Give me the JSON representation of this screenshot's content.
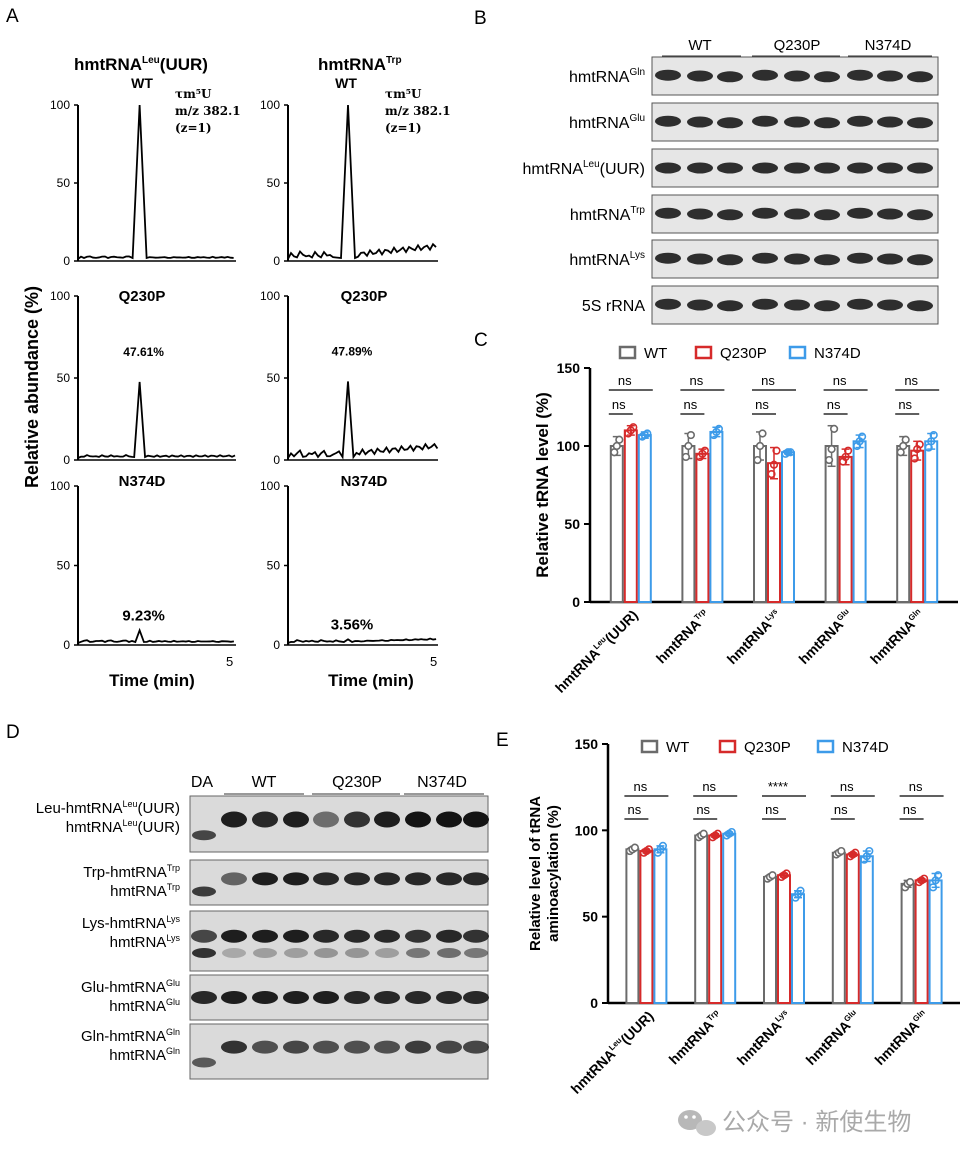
{
  "panel_letters": {
    "A": "A",
    "B": "B",
    "C": "C",
    "D": "D",
    "E": "E"
  },
  "colors": {
    "wt": "#6b6b6b",
    "q230p": "#d62a2a",
    "n374d": "#3d9be9",
    "trace": "#000000",
    "band": "#141414",
    "blot_bg": "#e6e6e6"
  },
  "panel_a": {
    "col_titles": [
      {
        "base": "hmtRNA",
        "sup": "Leu",
        "suffix": "(UUR)"
      },
      {
        "base": "hmtRNA",
        "sup": "Trp",
        "suffix": ""
      }
    ],
    "ylabel": "Relative abundance (%)",
    "xlabel": "Time (min)",
    "x_end_tick": "5",
    "annotation": {
      "line1": "τm⁵U",
      "line2": "m/z 382.1",
      "line3": "(z=1)"
    },
    "rows": [
      {
        "label": "WT",
        "yticks": [
          "100",
          "50",
          "0"
        ],
        "peaks": [
          "",
          ""
        ]
      },
      {
        "label": "Q230P",
        "yticks": [
          "100",
          "50",
          "0"
        ],
        "peaks": [
          "47.61%",
          "47.89%"
        ]
      },
      {
        "label": "N374D",
        "yticks": [
          "100",
          "50",
          "0"
        ],
        "peaks": [
          "9.23%",
          "3.56%"
        ]
      }
    ],
    "peak_values": [
      [
        100,
        100
      ],
      [
        47.61,
        47.89
      ],
      [
        9.23,
        3.56
      ]
    ]
  },
  "panel_b": {
    "groups": [
      "WT",
      "Q230P",
      "N374D"
    ],
    "rows": [
      {
        "base": "hmtRNA",
        "sup": "Gln",
        "suffix": ""
      },
      {
        "base": "hmtRNA",
        "sup": "Glu",
        "suffix": ""
      },
      {
        "base": "hmtRNA",
        "sup": "Leu",
        "suffix": "(UUR)"
      },
      {
        "base": "hmtRNA",
        "sup": "Trp",
        "suffix": ""
      },
      {
        "base": "hmtRNA",
        "sup": "Lys",
        "suffix": ""
      },
      {
        "base": "5S rRNA",
        "sup": "",
        "suffix": ""
      }
    ]
  },
  "panel_d": {
    "lanes_header": {
      "da": "DA",
      "groups": [
        "WT",
        "Q230P",
        "N374D"
      ]
    },
    "blots": [
      {
        "upper": {
          "base": "Leu-hmtRNA",
          "sup": "Leu",
          "suffix": "(UUR)"
        },
        "lower": {
          "base": "hmtRNA",
          "sup": "Leu",
          "suffix": "(UUR)"
        }
      },
      {
        "upper": {
          "base": "Trp-hmtRNA",
          "sup": "Trp",
          "suffix": ""
        },
        "lower": {
          "base": "hmtRNA",
          "sup": "Trp",
          "suffix": ""
        }
      },
      {
        "upper": {
          "base": "Lys-hmtRNA",
          "sup": "Lys",
          "suffix": ""
        },
        "lower": {
          "base": "hmtRNA",
          "sup": "Lys",
          "suffix": ""
        }
      },
      {
        "upper": {
          "base": "Glu-hmtRNA",
          "sup": "Glu",
          "suffix": ""
        },
        "lower": {
          "base": "hmtRNA",
          "sup": "Glu",
          "suffix": ""
        }
      },
      {
        "upper": {
          "base": "Gln-hmtRNA",
          "sup": "Gln",
          "suffix": ""
        },
        "lower": {
          "base": "hmtRNA",
          "sup": "Gln",
          "suffix": ""
        }
      }
    ]
  },
  "chart_data": [
    {
      "id": "C",
      "type": "bar",
      "ylabel": "Relative tRNA level (%)",
      "ylim": [
        0,
        150
      ],
      "yticks": [
        0,
        50,
        100,
        150
      ],
      "legend": [
        "WT",
        "Q230P",
        "N374D"
      ],
      "legend_placement": "top",
      "categories": [
        {
          "base": "hmtRNA",
          "sup": "Leu",
          "suffix": "(UUR)"
        },
        {
          "base": "hmtRNA",
          "sup": "Trp",
          "suffix": ""
        },
        {
          "base": "hmtRNA",
          "sup": "Lys",
          "suffix": ""
        },
        {
          "base": "hmtRNA",
          "sup": "Glu",
          "suffix": ""
        },
        {
          "base": "hmtRNA",
          "sup": "Gln",
          "suffix": ""
        }
      ],
      "series": [
        {
          "name": "WT",
          "values": [
            100,
            100,
            100,
            100,
            100
          ],
          "errors": [
            6,
            8,
            9,
            13,
            6
          ],
          "points": [
            [
              96,
              100,
              104
            ],
            [
              93,
              100,
              107
            ],
            [
              91,
              100,
              108
            ],
            [
              91,
              98,
              111
            ],
            [
              96,
              100,
              104
            ]
          ]
        },
        {
          "name": "Q230P",
          "values": [
            110,
            95,
            89,
            93,
            97
          ],
          "errors": [
            3,
            3,
            10,
            5,
            6
          ],
          "points": [
            [
              108,
              110,
              112
            ],
            [
              93,
              95,
              97
            ],
            [
              82,
              88,
              97
            ],
            [
              90,
              93,
              97
            ],
            [
              92,
              98,
              101
            ]
          ]
        },
        {
          "name": "N374D",
          "values": [
            107,
            109,
            96,
            103,
            103
          ],
          "errors": [
            2,
            3,
            1,
            4,
            5
          ],
          "points": [
            [
              106,
              107,
              108
            ],
            [
              107,
              109,
              111
            ],
            [
              95,
              96,
              96
            ],
            [
              100,
              103,
              106
            ],
            [
              99,
              103,
              107
            ]
          ]
        }
      ],
      "significance": [
        [
          "ns",
          "ns"
        ],
        [
          "ns",
          "ns"
        ],
        [
          "ns",
          "ns"
        ],
        [
          "ns",
          "ns"
        ],
        [
          "ns",
          "ns"
        ]
      ]
    },
    {
      "id": "E",
      "type": "bar",
      "ylabel": "Relative level of tRNA aminoacylation (%)",
      "ylabel_lines": [
        "Relative level of tRNA",
        "aminoacylation (%)"
      ],
      "ylim": [
        0,
        150
      ],
      "yticks": [
        0,
        50,
        100,
        150
      ],
      "legend": [
        "WT",
        "Q230P",
        "N374D"
      ],
      "legend_placement": "top",
      "categories": [
        {
          "base": "hmtRNA",
          "sup": "Leu",
          "suffix": "(UUR)"
        },
        {
          "base": "hmtRNA",
          "sup": "Trp",
          "suffix": ""
        },
        {
          "base": "hmtRNA",
          "sup": "Lys",
          "suffix": ""
        },
        {
          "base": "hmtRNA",
          "sup": "Glu",
          "suffix": ""
        },
        {
          "base": "hmtRNA",
          "sup": "Gln",
          "suffix": ""
        }
      ],
      "series": [
        {
          "name": "WT",
          "values": [
            89,
            97,
            73,
            87,
            69
          ],
          "errors": [
            1,
            1,
            1,
            1,
            2
          ],
          "points": [
            [
              88,
              89,
              90
            ],
            [
              96,
              97,
              98
            ],
            [
              72,
              73,
              74
            ],
            [
              86,
              87,
              88
            ],
            [
              67,
              69,
              70
            ]
          ]
        },
        {
          "name": "Q230P",
          "values": [
            88,
            97,
            74,
            86,
            71
          ],
          "errors": [
            1,
            1,
            1,
            1,
            1
          ],
          "points": [
            [
              87,
              88,
              89
            ],
            [
              96,
              97,
              98
            ],
            [
              73,
              74,
              75
            ],
            [
              85,
              86,
              87
            ],
            [
              70,
              71,
              72
            ]
          ]
        },
        {
          "name": "N374D",
          "values": [
            89,
            98,
            63,
            85,
            71
          ],
          "errors": [
            2,
            1,
            2,
            3,
            4
          ],
          "points": [
            [
              87,
              89,
              91
            ],
            [
              97,
              98,
              99
            ],
            [
              61,
              63,
              65
            ],
            [
              83,
              85,
              88
            ],
            [
              67,
              71,
              74
            ]
          ]
        }
      ],
      "significance": [
        [
          "ns",
          "ns"
        ],
        [
          "ns",
          "ns"
        ],
        [
          "****",
          "ns"
        ],
        [
          "ns",
          "ns"
        ],
        [
          "ns",
          "ns"
        ]
      ]
    }
  ],
  "watermark": "公众号 · 新使生物"
}
